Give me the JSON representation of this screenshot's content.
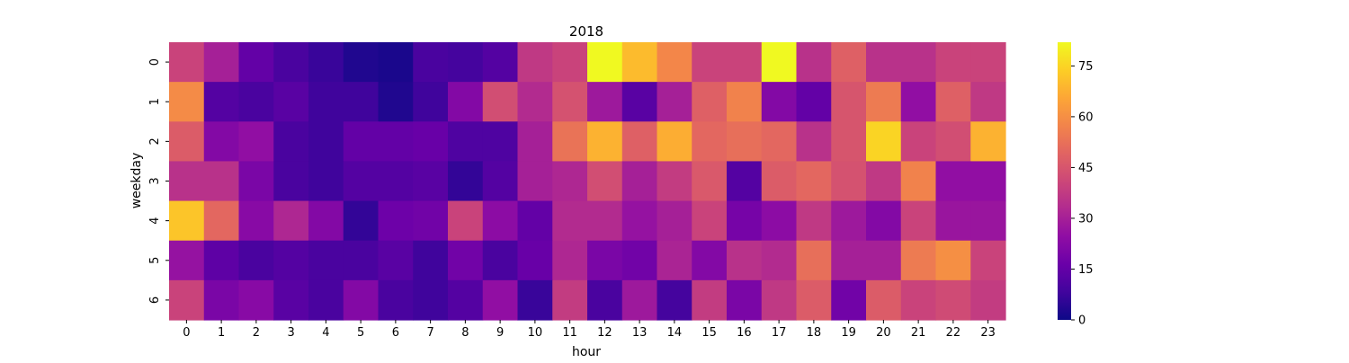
{
  "chart_data": {
    "type": "heatmap",
    "title": "2018",
    "xlabel": "hour",
    "ylabel": "weekday",
    "x_categories": [
      "0",
      "1",
      "2",
      "3",
      "4",
      "5",
      "6",
      "7",
      "8",
      "9",
      "10",
      "11",
      "12",
      "13",
      "14",
      "15",
      "16",
      "17",
      "18",
      "19",
      "20",
      "21",
      "22",
      "23"
    ],
    "y_categories": [
      "0",
      "1",
      "2",
      "3",
      "4",
      "5",
      "6"
    ],
    "colormap": "plasma",
    "vmin": 0,
    "vmax": 82,
    "colorbar_ticks": [
      0,
      15,
      30,
      45,
      60,
      75
    ],
    "grid": false,
    "legend": "colorbar right",
    "values": [
      [
        40,
        30,
        15,
        10,
        7,
        3,
        2,
        10,
        9,
        12,
        37,
        40,
        82,
        70,
        58,
        40,
        40,
        82,
        35,
        48,
        35,
        35,
        40,
        40
      ],
      [
        59,
        12,
        10,
        13,
        8,
        8,
        3,
        8,
        22,
        43,
        33,
        44,
        28,
        13,
        30,
        48,
        57,
        22,
        15,
        45,
        55,
        25,
        48,
        37
      ],
      [
        47,
        22,
        25,
        10,
        8,
        15,
        15,
        16,
        11,
        11,
        30,
        53,
        68,
        48,
        67,
        50,
        52,
        50,
        35,
        45,
        75,
        40,
        43,
        68
      ],
      [
        35,
        35,
        20,
        10,
        8,
        12,
        12,
        13,
        6,
        12,
        30,
        32,
        43,
        30,
        38,
        46,
        12,
        47,
        50,
        44,
        37,
        57,
        25,
        25
      ],
      [
        72,
        50,
        23,
        32,
        22,
        6,
        17,
        18,
        40,
        24,
        15,
        33,
        33,
        26,
        30,
        40,
        19,
        24,
        37,
        28,
        22,
        40,
        27,
        27
      ],
      [
        26,
        14,
        10,
        12,
        10,
        10,
        13,
        8,
        18,
        10,
        16,
        32,
        20,
        18,
        31,
        22,
        35,
        33,
        52,
        30,
        30,
        55,
        60,
        40
      ],
      [
        40,
        20,
        23,
        13,
        10,
        22,
        10,
        8,
        12,
        25,
        7,
        38,
        10,
        28,
        9,
        38,
        20,
        37,
        47,
        18,
        47,
        40,
        42,
        38
      ]
    ]
  }
}
